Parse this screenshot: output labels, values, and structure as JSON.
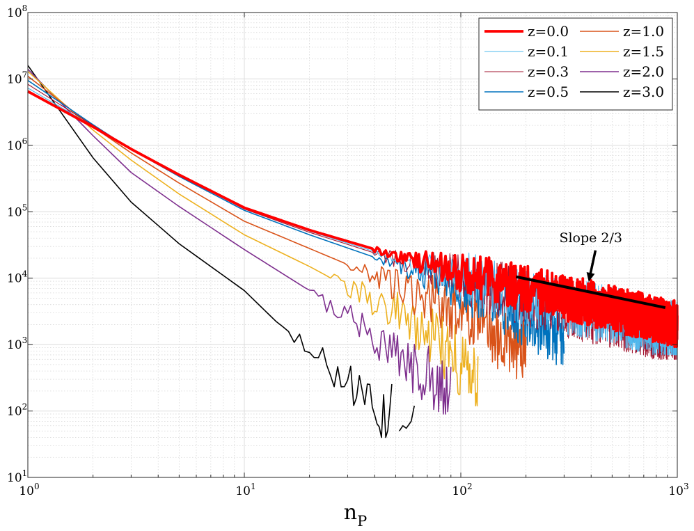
{
  "chart_data": {
    "type": "line",
    "title": "",
    "xlabel": "n",
    "xlabel_subscript": "P",
    "ylabel": "",
    "xscale": "log",
    "yscale": "log",
    "xlim": [
      1,
      1000
    ],
    "ylim": [
      10,
      100000000
    ],
    "grid": true,
    "legend_position": "top-right",
    "x_ticks": [
      {
        "value": 1,
        "base": "10",
        "exp": "0"
      },
      {
        "value": 10,
        "base": "10",
        "exp": "1"
      },
      {
        "value": 100,
        "base": "10",
        "exp": "2"
      },
      {
        "value": 1000,
        "base": "10",
        "exp": "3"
      }
    ],
    "y_ticks": [
      {
        "value": 10,
        "base": "10",
        "exp": "1"
      },
      {
        "value": 100,
        "base": "10",
        "exp": "2"
      },
      {
        "value": 1000,
        "base": "10",
        "exp": "3"
      },
      {
        "value": 10000,
        "base": "10",
        "exp": "4"
      },
      {
        "value": 100000,
        "base": "10",
        "exp": "5"
      },
      {
        "value": 1000000,
        "base": "10",
        "exp": "6"
      },
      {
        "value": 10000000,
        "base": "10",
        "exp": "7"
      },
      {
        "value": 100000000,
        "base": "10",
        "exp": "8"
      }
    ],
    "series": [
      {
        "name": "z=0.0",
        "color": "#ff0000",
        "weight": "thick",
        "x": [
          1,
          2,
          3,
          5,
          10,
          20,
          50,
          100,
          200,
          500,
          1000
        ],
        "values": [
          6500000,
          1900000,
          880000,
          360000,
          115000,
          53000,
          22000,
          12000,
          7000,
          3500,
          2000
        ],
        "noise_from_x": 40,
        "noise_amplitude": 0.35,
        "min_value": 900
      },
      {
        "name": "z=0.1",
        "color": "#4db8ee",
        "weight": "thin",
        "x": [
          1,
          2,
          3,
          5,
          10,
          20,
          50,
          100,
          200,
          500,
          1000
        ],
        "values": [
          7300000,
          1950000,
          890000,
          360000,
          114000,
          51000,
          20000,
          10500,
          5500,
          2700,
          1600
        ],
        "noise_from_x": 40,
        "noise_amplitude": 0.45,
        "min_value": 700
      },
      {
        "name": "z=0.3",
        "color": "#a2142f",
        "weight": "thin",
        "x": [
          1,
          2,
          3,
          5,
          10,
          20,
          50,
          100,
          200,
          500,
          1000
        ],
        "values": [
          8300000,
          2000000,
          890000,
          355000,
          110000,
          49000,
          19000,
          10000,
          5000,
          2400,
          1400
        ],
        "noise_from_x": 40,
        "noise_amplitude": 0.45,
        "min_value": 600
      },
      {
        "name": "z=0.5",
        "color": "#0072bd",
        "weight": "normal",
        "x": [
          1,
          2,
          3,
          5,
          10,
          20,
          50,
          100,
          150,
          200,
          300
        ],
        "values": [
          9500000,
          2050000,
          870000,
          340000,
          105000,
          45000,
          16000,
          7500,
          4500,
          2500,
          1200
        ],
        "noise_from_x": 40,
        "noise_amplitude": 0.45,
        "min_value": 500
      },
      {
        "name": "z=1.0",
        "color": "#d95319",
        "weight": "normal",
        "x": [
          1,
          2,
          3,
          5,
          10,
          20,
          50,
          100,
          150,
          200
        ],
        "values": [
          11000000,
          1900000,
          770000,
          270000,
          72000,
          28000,
          8000,
          3000,
          1300,
          800
        ],
        "noise_from_x": 30,
        "noise_amplitude": 0.5,
        "min_value": 150
      },
      {
        "name": "z=1.5",
        "color": "#edb120",
        "weight": "normal",
        "x": [
          1,
          2,
          3,
          5,
          10,
          20,
          50,
          80,
          120
        ],
        "values": [
          13000000,
          1700000,
          600000,
          185000,
          45000,
          15000,
          3000,
          1000,
          300
        ],
        "noise_from_x": 25,
        "noise_amplitude": 0.5,
        "min_value": 120
      },
      {
        "name": "z=2.0",
        "color": "#7e2f8e",
        "weight": "normal",
        "x": [
          1,
          2,
          3,
          5,
          10,
          20,
          30,
          50,
          90
        ],
        "values": [
          14000000,
          1400000,
          390000,
          120000,
          27000,
          6500,
          2500,
          800,
          200
        ],
        "noise_from_x": 20,
        "noise_amplitude": 0.5,
        "min_value": 90
      },
      {
        "name": "z=3.0",
        "color": "#000000",
        "weight": "normal",
        "x": [
          1,
          2,
          3,
          5,
          10,
          15,
          20,
          30,
          40,
          48
        ],
        "values": [
          16000000,
          650000,
          140000,
          33000,
          6500,
          1800,
          800,
          250,
          90,
          100
        ],
        "noise_from_x": 15,
        "noise_amplitude": 0.5,
        "min_value": 40
      },
      {
        "name": "",
        "color": "#000000",
        "weight": "normal",
        "legend": false,
        "x": [
          52,
          54,
          56,
          59,
          61
        ],
        "values": [
          50,
          60,
          55,
          70,
          120
        ],
        "noise_from_x": 1000,
        "noise_amplitude": 0,
        "min_value": 10
      }
    ],
    "annotations": [
      {
        "type": "line",
        "label": "",
        "color": "#000000",
        "x": [
          180,
          880
        ],
        "y": [
          10500,
          3600
        ]
      },
      {
        "type": "arrow",
        "label": "Slope 2/3",
        "color": "#000000",
        "text_at": [
          285,
          35000
        ],
        "tip_at": [
          390,
          8800
        ]
      }
    ]
  }
}
